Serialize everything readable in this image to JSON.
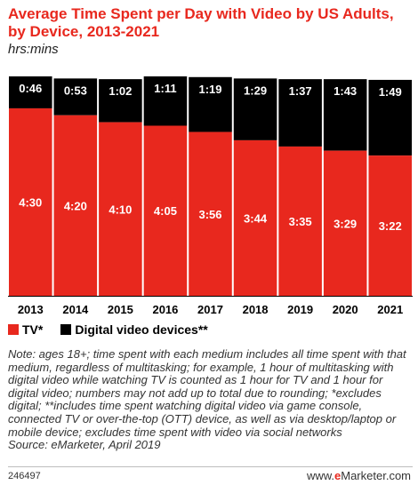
{
  "chart_data": {
    "type": "bar",
    "stacked": true,
    "title": "Average Time Spent per Day with Video by US Adults, by Device, 2013-2021",
    "subtitle": "hrs:mins",
    "categories": [
      "2013",
      "2014",
      "2015",
      "2016",
      "2017",
      "2018",
      "2019",
      "2020",
      "2021"
    ],
    "series": [
      {
        "name": "TV*",
        "color": "#e8281e",
        "values_minutes": [
          270,
          260,
          250,
          245,
          236,
          224,
          215,
          209,
          202
        ],
        "labels": [
          "4:30",
          "4:20",
          "4:10",
          "4:05",
          "3:56",
          "3:44",
          "3:35",
          "3:29",
          "3:22"
        ]
      },
      {
        "name": "Digital video devices**",
        "color": "#000000",
        "values_minutes": [
          46,
          53,
          62,
          71,
          79,
          89,
          97,
          103,
          109
        ],
        "labels": [
          "0:46",
          "0:53",
          "1:02",
          "1:11",
          "1:19",
          "1:29",
          "1:37",
          "1:43",
          "1:49"
        ]
      }
    ],
    "ylim_minutes": [
      0,
      316
    ],
    "grid": false,
    "legend_position": "bottom-left"
  },
  "note": "Note: ages 18+; time spent with each medium includes all time spent with that medium, regardless of multitasking; for example, 1 hour of multitasking with digital video while watching TV is counted as 1 hour for TV and 1 hour for digital video; numbers may not add up to total due to rounding; *excludes digital; **includes time spent watching digital video via game console, connected TV or over-the-top (OTT) device, as well as via desktop/laptop or mobile device; excludes time spent with video via social networks",
  "source": "Source: eMarketer, April 2019",
  "chart_id": "246497",
  "brand": {
    "prefix": "www.",
    "highlight": "e",
    "rest": "Marketer",
    "suffix": ".com"
  }
}
